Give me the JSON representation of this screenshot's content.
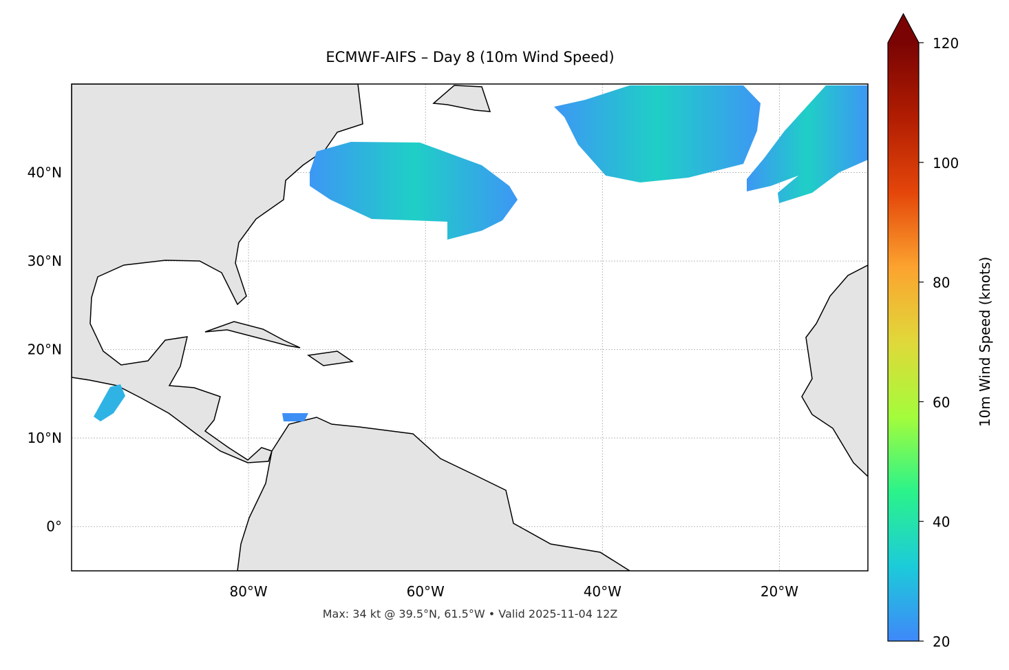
{
  "chart_data": {
    "type": "map",
    "title": "ECMWF-AIFS – Day 8 (10m Wind Speed)",
    "annotation": "Max: 34 kt @ 39.5°N, 61.5°W • Valid 2025-11-04 12Z",
    "xlim": [
      -100,
      -10
    ],
    "ylim": [
      -5,
      50
    ],
    "xticks": [
      {
        "value": -80,
        "label": "80°W"
      },
      {
        "value": -60,
        "label": "60°W"
      },
      {
        "value": -40,
        "label": "40°W"
      },
      {
        "value": -20,
        "label": "20°W"
      }
    ],
    "yticks": [
      {
        "value": 0,
        "label": "0°"
      },
      {
        "value": 10,
        "label": "10°N"
      },
      {
        "value": 20,
        "label": "20°N"
      },
      {
        "value": 30,
        "label": "30°N"
      },
      {
        "value": 40,
        "label": "40°N"
      }
    ],
    "grid": true,
    "colorbar": {
      "label": "10m Wind Speed (knots)",
      "lim": [
        20,
        120
      ],
      "ticks": [
        20,
        40,
        60,
        80,
        100,
        120
      ],
      "colors": [
        "#3f88fa",
        "#1ccbd9",
        "#2bf38a",
        "#a4fc3b",
        "#e0d83a",
        "#fca32f",
        "#e4460a",
        "#b11d02",
        "#7a0403"
      ]
    }
  }
}
